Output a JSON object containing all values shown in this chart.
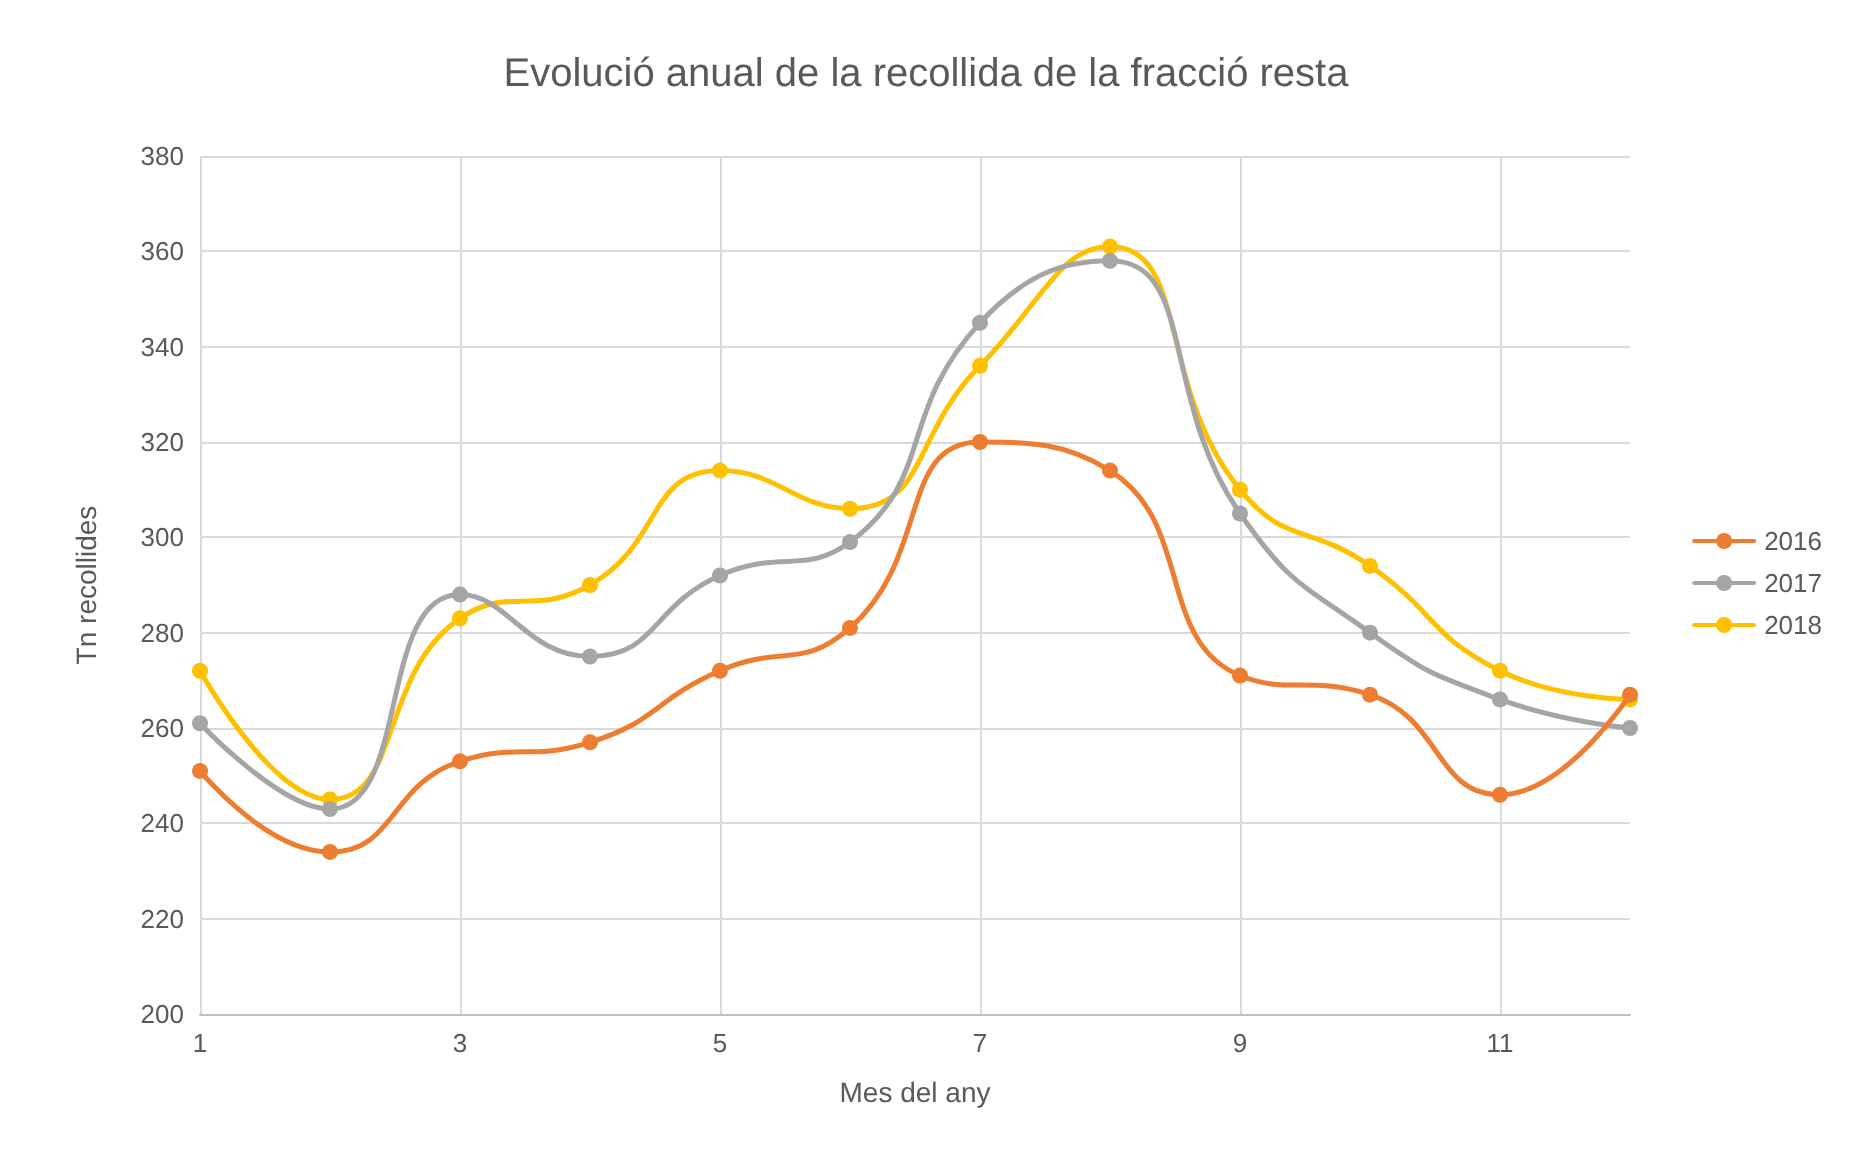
{
  "chart_data": {
    "type": "line",
    "title": "Evolució anual de la recollida de la fracció resta",
    "xlabel": "Mes del any",
    "ylabel": "Tn recollides",
    "x": [
      1,
      2,
      3,
      4,
      5,
      6,
      7,
      8,
      9,
      10,
      11,
      12
    ],
    "series": [
      {
        "name": "2016",
        "color": "#ed7d31",
        "values": [
          251,
          234,
          253,
          257,
          272,
          281,
          320,
          314,
          271,
          267,
          246,
          267
        ]
      },
      {
        "name": "2017",
        "color": "#a5a5a5",
        "values": [
          261,
          243,
          288,
          275,
          292,
          299,
          345,
          358,
          305,
          280,
          266,
          260
        ]
      },
      {
        "name": "2018",
        "color": "#ffc000",
        "values": [
          272,
          245,
          283,
          290,
          314,
          306,
          336,
          361,
          310,
          294,
          272,
          266
        ]
      }
    ],
    "xlim": [
      1,
      12
    ],
    "xticks": [
      1,
      3,
      5,
      7,
      9,
      11
    ],
    "ylim": [
      200,
      380
    ],
    "yticks": [
      200,
      220,
      240,
      260,
      280,
      300,
      320,
      340,
      360,
      380
    ],
    "grid": true,
    "legend": "right",
    "marker": "circle",
    "line_style": "solid"
  }
}
